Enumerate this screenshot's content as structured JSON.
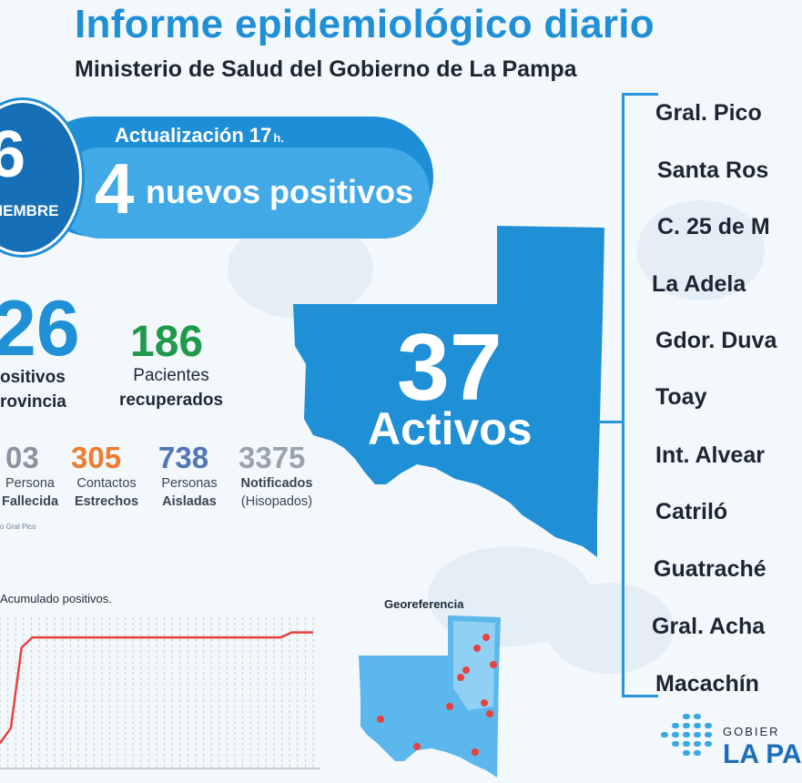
{
  "header": {
    "title": "Informe epidemiológico diario",
    "subtitle": "Ministerio de Salud del Gobierno de La Pampa"
  },
  "banner": {
    "date_day": "6",
    "date_month": "TIEMBRE",
    "update_label": "Actualización 17",
    "update_unit": "h.",
    "new_positives_count": "4",
    "new_positives_label": "nuevos positivos"
  },
  "stats": {
    "total_positives": {
      "value": "26",
      "line1": "ositivos",
      "line2": "rovincia"
    },
    "recovered": {
      "value": "186",
      "line1": "Pacientes",
      "line2": "recuperados"
    },
    "deceased": {
      "value": "03",
      "line1": "Persona",
      "line2": "Fallecida"
    },
    "close_contacts": {
      "value": "305",
      "line1": "Contactos",
      "line2": "Estrechos"
    },
    "isolated": {
      "value": "738",
      "line1": "Personas",
      "line2": "Aisladas"
    },
    "notified": {
      "value": "3375",
      "line1": "Notificados",
      "line2": "(Hisopados)"
    },
    "footnote": "o Gral Pico"
  },
  "map": {
    "active_count": "37",
    "active_label": "Activos"
  },
  "localities": [
    "Gral. Pico",
    "Santa Ros",
    "C. 25 de M",
    "La Adela",
    "Gdor. Duva",
    "Toay",
    "Int. Alvear",
    "Catriló",
    "Guatraché",
    "Gral. Acha",
    "Macachín"
  ],
  "chart": {
    "label": "Acumulado positivos."
  },
  "chart_data": {
    "type": "line",
    "title": "Acumulado positivos.",
    "xlabel": "",
    "ylabel": "",
    "series": [
      {
        "values": [
          5,
          8,
          24,
          26,
          26,
          26,
          26,
          26,
          26,
          26,
          26,
          26,
          26,
          26,
          26,
          26,
          26,
          26,
          26,
          26,
          26,
          26,
          26,
          26,
          26,
          26,
          26,
          27,
          27,
          27
        ]
      }
    ],
    "ylim": [
      0,
      30
    ],
    "grid": true
  },
  "georef": {
    "title": "Georeferencia"
  },
  "logo": {
    "gov_text": "GOBIER",
    "name_text": "LA PA",
    "primary_color": "#1b6fb8"
  },
  "colors": {
    "title_blue": "#1f8fd6",
    "recovered_green": "#1f9a4a",
    "contacts_orange": "#ee7d2e",
    "isolated_blue": "#5177b4",
    "notified_gray": "#9aa3ab",
    "deceased_gray": "#8b949c"
  }
}
